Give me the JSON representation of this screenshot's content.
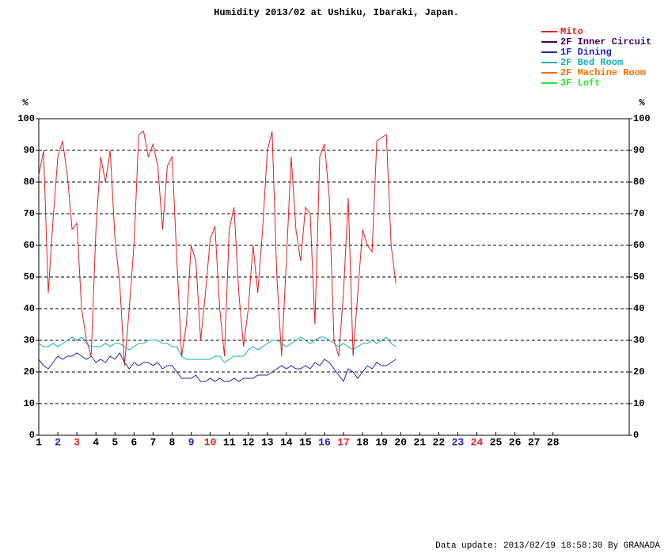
{
  "chart_data": {
    "type": "line",
    "title": "Humidity 2013/02 at Ushiku, Ibaraki, Japan.",
    "y_label": "%",
    "y2_label": "%",
    "footer": "Data update: 2013/02/19 18:58:30 By GRANADA",
    "grid": true,
    "xlim": [
      1,
      32
    ],
    "ylim": [
      0,
      100
    ],
    "y2lim": [
      0,
      100
    ],
    "xticks": [
      1,
      2,
      3,
      4,
      5,
      6,
      7,
      8,
      9,
      10,
      11,
      12,
      13,
      14,
      15,
      16,
      17,
      18,
      19,
      20,
      21,
      22,
      23,
      24,
      25,
      26,
      27,
      28
    ],
    "xtick_colors": [
      "#000000",
      "#2020c0",
      "#e02020",
      "#000000",
      "#000000",
      "#000000",
      "#000000",
      "#000000",
      "#2020c0",
      "#e02020",
      "#000000",
      "#000000",
      "#000000",
      "#000000",
      "#000000",
      "#2020c0",
      "#e02020",
      "#000000",
      "#000000",
      "#000000",
      "#000000",
      "#000000",
      "#2020c0",
      "#e02020",
      "#000000",
      "#000000",
      "#000000",
      "#000000"
    ],
    "yticks": [
      0,
      10,
      20,
      30,
      40,
      50,
      60,
      70,
      80,
      90,
      100
    ],
    "y2ticks": [
      0,
      10,
      20,
      30,
      40,
      50,
      60,
      70,
      80,
      90,
      100
    ],
    "x": [
      1,
      1.25,
      1.5,
      1.75,
      2,
      2.25,
      2.5,
      2.75,
      3,
      3.25,
      3.5,
      3.75,
      4,
      4.25,
      4.5,
      4.75,
      5,
      5.25,
      5.5,
      5.75,
      6,
      6.25,
      6.5,
      6.75,
      7,
      7.25,
      7.5,
      7.75,
      8,
      8.25,
      8.5,
      8.75,
      9,
      9.25,
      9.5,
      9.75,
      10,
      10.25,
      10.5,
      10.75,
      11,
      11.25,
      11.5,
      11.75,
      12,
      12.25,
      12.5,
      12.75,
      13,
      13.25,
      13.5,
      13.75,
      14,
      14.25,
      14.5,
      14.75,
      15,
      15.25,
      15.5,
      15.75,
      16,
      16.25,
      16.5,
      16.75,
      17,
      17.25,
      17.5,
      17.75,
      18,
      18.25,
      18.5,
      18.75,
      19,
      19.25,
      19.5,
      19.75
    ],
    "series": [
      {
        "name": "Mito",
        "color": "#e02020",
        "values": [
          82,
          90,
          45,
          68,
          88,
          93,
          82,
          65,
          67,
          40,
          30,
          25,
          65,
          88,
          80,
          90,
          62,
          48,
          22,
          40,
          60,
          95,
          96,
          88,
          92,
          85,
          65,
          85,
          88,
          55,
          25,
          35,
          60,
          55,
          30,
          45,
          62,
          66,
          40,
          25,
          65,
          72,
          45,
          28,
          40,
          60,
          45,
          65,
          90,
          96,
          50,
          25,
          55,
          88,
          65,
          55,
          72,
          70,
          35,
          88,
          92,
          75,
          30,
          25,
          45,
          75,
          25,
          45,
          65,
          60,
          58,
          93,
          94,
          95,
          60,
          48
        ]
      },
      {
        "name": "2F Inner Circuit",
        "color": "#400060",
        "values": [
          null,
          null,
          null,
          null,
          null,
          null,
          null,
          null,
          null,
          null,
          null,
          null,
          null,
          null,
          null,
          null,
          null,
          null,
          null,
          null,
          null,
          null,
          null,
          null,
          null,
          null,
          null,
          null,
          null,
          null,
          null,
          null,
          null,
          null,
          null,
          null,
          null,
          null,
          null,
          null,
          null,
          null,
          null,
          null,
          null,
          null,
          null,
          null,
          null,
          null,
          null,
          null,
          null,
          null,
          null,
          null,
          null,
          null,
          null,
          null,
          null,
          null,
          null,
          null,
          null,
          null,
          null,
          null,
          null,
          null,
          null,
          null,
          null,
          null,
          null,
          null
        ]
      },
      {
        "name": "1F Dining",
        "color": "#2020b0",
        "values": [
          24,
          22,
          21,
          23,
          25,
          24,
          25,
          25,
          26,
          25,
          24,
          25,
          23,
          24,
          23,
          25,
          24,
          26,
          23,
          21,
          23,
          22,
          23,
          23,
          22,
          23,
          21,
          22,
          22,
          20,
          18,
          18,
          18,
          19,
          17,
          17,
          18,
          17,
          18,
          17,
          17,
          18,
          17,
          18,
          18,
          18,
          19,
          19,
          19,
          20,
          21,
          22,
          21,
          22,
          21,
          21,
          22,
          21,
          23,
          22,
          24,
          23,
          21,
          19,
          17,
          21,
          20,
          18,
          20,
          22,
          21,
          23,
          22,
          22,
          23,
          24
        ]
      },
      {
        "name": "2F Bed Room",
        "color": "#10b0b0",
        "values": [
          29,
          28,
          28,
          29,
          28,
          29,
          30,
          31,
          30,
          31,
          29,
          28,
          28,
          28,
          29,
          28,
          29,
          29,
          28,
          27,
          28,
          29,
          29,
          30,
          30,
          30,
          29,
          29,
          28,
          28,
          25,
          24,
          24,
          24,
          24,
          24,
          24,
          25,
          25,
          23,
          24,
          25,
          25,
          25,
          27,
          28,
          27,
          28,
          29,
          30,
          30,
          29,
          28,
          29,
          30,
          31,
          30,
          29,
          30,
          31,
          31,
          30,
          29,
          28,
          29,
          28,
          27,
          28,
          29,
          29,
          30,
          29,
          30,
          31,
          29,
          28
        ]
      },
      {
        "name": "2F Machine Room",
        "color": "#f07000",
        "values": [
          null,
          null,
          null,
          null,
          null,
          null,
          null,
          null,
          null,
          null,
          null,
          null,
          null,
          null,
          null,
          null,
          null,
          null,
          null,
          null,
          null,
          null,
          null,
          null,
          null,
          null,
          null,
          null,
          null,
          null,
          null,
          null,
          null,
          null,
          null,
          null,
          null,
          null,
          null,
          null,
          null,
          null,
          null,
          null,
          null,
          null,
          null,
          null,
          null,
          null,
          null,
          null,
          null,
          null,
          null,
          null,
          null,
          null,
          null,
          null,
          null,
          null,
          null,
          null,
          null,
          null,
          null,
          null,
          null,
          null,
          null,
          null,
          null,
          null,
          null,
          null
        ]
      },
      {
        "name": "3F Loft",
        "color": "#30e030",
        "values": [
          null,
          null,
          null,
          null,
          null,
          null,
          null,
          null,
          null,
          null,
          null,
          null,
          null,
          null,
          null,
          null,
          null,
          null,
          null,
          null,
          null,
          null,
          null,
          null,
          null,
          null,
          null,
          null,
          null,
          null,
          null,
          null,
          null,
          null,
          null,
          null,
          null,
          null,
          null,
          null,
          null,
          null,
          null,
          null,
          null,
          null,
          null,
          null,
          null,
          null,
          null,
          null,
          null,
          null,
          null,
          null,
          null,
          null,
          null,
          null,
          null,
          null,
          null,
          null,
          null,
          null,
          null,
          null,
          null,
          null,
          null,
          null,
          null,
          null,
          null,
          null
        ]
      }
    ]
  }
}
